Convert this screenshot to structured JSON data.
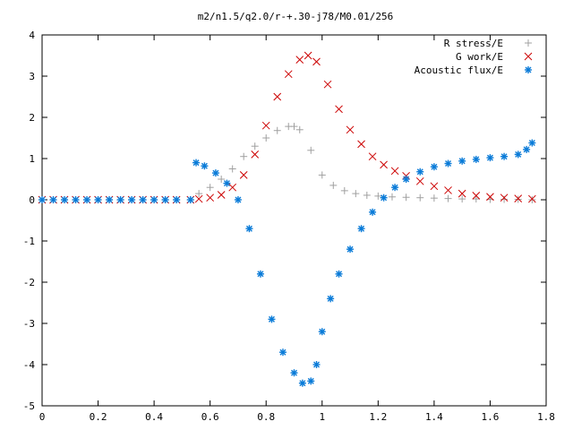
{
  "chart_data": {
    "type": "scatter",
    "title": "m2/n1.5/q2.0/r-+.30-j78/M0.01/256",
    "xlabel": "",
    "ylabel": "",
    "xlim": [
      0,
      1.8
    ],
    "ylim": [
      -5,
      4
    ],
    "grid": false,
    "legend_position": "top-right",
    "x_ticks": [
      "0",
      "0.2",
      "0.4",
      "0.6",
      "0.8",
      "1",
      "1.2",
      "1.4",
      "1.6",
      "1.8"
    ],
    "x_tick_values": [
      0,
      0.2,
      0.4,
      0.6,
      0.8,
      1.0,
      1.2,
      1.4,
      1.6,
      1.8
    ],
    "y_ticks": [
      "4",
      "3",
      "2",
      "1",
      "0",
      "-1",
      "-2",
      "-3",
      "-4",
      "-5"
    ],
    "y_tick_values": [
      4,
      3,
      2,
      1,
      0,
      -1,
      -2,
      -3,
      -4,
      -5
    ],
    "series": [
      {
        "name": "R stress/E",
        "marker": "plus",
        "color": "#a0a0a0",
        "x": [
          0.0,
          0.04,
          0.08,
          0.12,
          0.16,
          0.2,
          0.24,
          0.28,
          0.32,
          0.36,
          0.4,
          0.44,
          0.48,
          0.53,
          0.56,
          0.6,
          0.64,
          0.68,
          0.72,
          0.76,
          0.8,
          0.84,
          0.88,
          0.9,
          0.92,
          0.96,
          1.0,
          1.04,
          1.08,
          1.12,
          1.16,
          1.2,
          1.25,
          1.3,
          1.35,
          1.4,
          1.45,
          1.5,
          1.55,
          1.6,
          1.65,
          1.7,
          1.75
        ],
        "y": [
          0,
          0,
          0,
          0,
          0,
          0,
          0,
          0,
          0,
          0,
          0,
          0,
          0,
          0,
          0.15,
          0.3,
          0.5,
          0.75,
          1.05,
          1.3,
          1.5,
          1.68,
          1.78,
          1.78,
          1.7,
          1.2,
          0.6,
          0.35,
          0.22,
          0.15,
          0.11,
          0.09,
          0.07,
          0.06,
          0.05,
          0.04,
          0.03,
          0.02,
          0.02,
          0.01,
          0.01,
          0.01,
          0.0
        ]
      },
      {
        "name": "G work/E",
        "marker": "cross",
        "color": "#cc0000",
        "x": [
          0.0,
          0.04,
          0.08,
          0.12,
          0.16,
          0.2,
          0.24,
          0.28,
          0.32,
          0.36,
          0.4,
          0.44,
          0.48,
          0.53,
          0.56,
          0.6,
          0.64,
          0.68,
          0.72,
          0.76,
          0.8,
          0.84,
          0.88,
          0.92,
          0.95,
          0.98,
          1.02,
          1.06,
          1.1,
          1.14,
          1.18,
          1.22,
          1.26,
          1.3,
          1.35,
          1.4,
          1.45,
          1.5,
          1.55,
          1.6,
          1.65,
          1.7,
          1.75
        ],
        "y": [
          0,
          0,
          0,
          0,
          0,
          0,
          0,
          0,
          0,
          0,
          0,
          0,
          0,
          0,
          0.02,
          0.05,
          0.12,
          0.3,
          0.6,
          1.1,
          1.8,
          2.5,
          3.05,
          3.4,
          3.5,
          3.35,
          2.8,
          2.2,
          1.7,
          1.35,
          1.05,
          0.85,
          0.7,
          0.58,
          0.45,
          0.33,
          0.23,
          0.15,
          0.1,
          0.07,
          0.05,
          0.03,
          0.02
        ]
      },
      {
        "name": "Acoustic flux/E",
        "marker": "star",
        "color": "#0a7bd8",
        "x": [
          0.0,
          0.04,
          0.08,
          0.12,
          0.16,
          0.2,
          0.24,
          0.28,
          0.32,
          0.36,
          0.4,
          0.44,
          0.48,
          0.53,
          0.55,
          0.58,
          0.62,
          0.66,
          0.7,
          0.74,
          0.78,
          0.82,
          0.86,
          0.9,
          0.93,
          0.96,
          0.98,
          1.0,
          1.03,
          1.06,
          1.1,
          1.14,
          1.18,
          1.22,
          1.26,
          1.3,
          1.35,
          1.4,
          1.45,
          1.5,
          1.55,
          1.6,
          1.65,
          1.7,
          1.73,
          1.75
        ],
        "y": [
          0,
          0,
          0,
          0,
          0,
          0,
          0,
          0,
          0,
          0,
          0,
          0,
          0,
          0,
          0.9,
          0.82,
          0.65,
          0.4,
          0.0,
          -0.7,
          -1.8,
          -2.9,
          -3.7,
          -4.2,
          -4.45,
          -4.4,
          -4.0,
          -3.2,
          -2.4,
          -1.8,
          -1.2,
          -0.7,
          -0.3,
          0.05,
          0.3,
          0.5,
          0.68,
          0.8,
          0.88,
          0.94,
          0.98,
          1.02,
          1.05,
          1.1,
          1.22,
          1.38
        ]
      }
    ]
  }
}
